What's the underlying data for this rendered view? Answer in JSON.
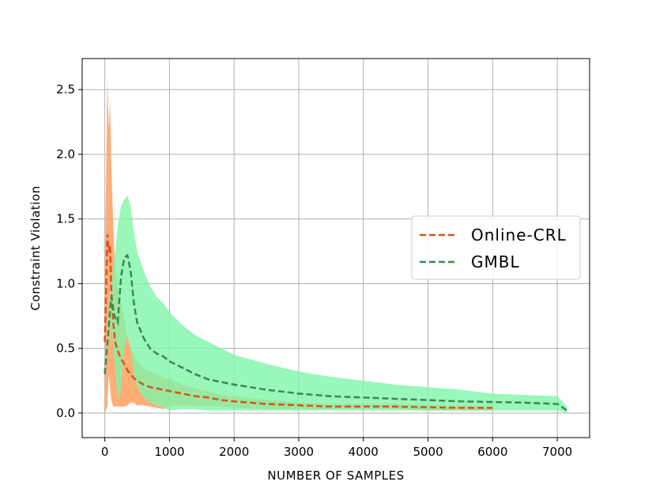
{
  "chart_data": {
    "type": "line",
    "xlabel": "NUMBER OF SAMPLES",
    "ylabel": "Constraint Violation",
    "xlim": [
      -350,
      7500
    ],
    "ylim": [
      -0.19,
      2.74
    ],
    "xticks": [
      0,
      1000,
      2000,
      3000,
      4000,
      5000,
      6000,
      7000
    ],
    "yticks": [
      0.0,
      0.5,
      1.0,
      1.5,
      2.0,
      2.5
    ],
    "xtick_labels": [
      "0",
      "1000",
      "2000",
      "3000",
      "4000",
      "5000",
      "6000",
      "7000"
    ],
    "ytick_labels": [
      "0.0",
      "0.5",
      "1.0",
      "1.5",
      "2.0",
      "2.5"
    ],
    "grid": true,
    "legend_position": "center-right",
    "series": [
      {
        "name": "Online-CRL",
        "line_color": "#d9531e",
        "band_color": "#ff9955",
        "line_style": "dashed",
        "x": [
          0,
          40,
          60,
          80,
          100,
          130,
          160,
          200,
          250,
          300,
          350,
          400,
          450,
          500,
          600,
          700,
          800,
          900,
          1000,
          1200,
          1400,
          1600,
          1800,
          2000,
          2500,
          3000,
          3500,
          4000,
          4500,
          5000,
          5500,
          6000
        ],
        "mean": [
          0.55,
          1.38,
          1.25,
          1.3,
          0.95,
          0.7,
          0.55,
          0.48,
          0.42,
          0.38,
          0.33,
          0.3,
          0.27,
          0.25,
          0.22,
          0.2,
          0.19,
          0.18,
          0.17,
          0.15,
          0.13,
          0.12,
          0.1,
          0.09,
          0.07,
          0.06,
          0.05,
          0.05,
          0.05,
          0.045,
          0.04,
          0.04
        ],
        "upper": [
          1.1,
          2.6,
          2.2,
          2.4,
          1.9,
          1.45,
          1.1,
          0.95,
          0.85,
          0.72,
          0.6,
          0.5,
          0.45,
          0.4,
          0.35,
          0.32,
          0.3,
          0.28,
          0.26,
          0.22,
          0.19,
          0.17,
          0.14,
          0.13,
          0.1,
          0.08,
          0.07,
          0.07,
          0.07,
          0.06,
          0.06,
          0.05
        ],
        "lower": [
          0.0,
          0.05,
          0.3,
          0.2,
          0.1,
          0.05,
          0.05,
          0.05,
          0.05,
          0.05,
          0.06,
          0.08,
          0.08,
          0.06,
          0.06,
          0.05,
          0.04,
          0.03,
          0.05,
          0.06,
          0.05,
          0.05,
          0.05,
          0.04,
          0.03,
          0.03,
          0.03,
          0.03,
          0.03,
          0.02,
          0.02,
          0.02
        ]
      },
      {
        "name": "GMBL",
        "line_color": "#3a8a4e",
        "band_color": "#80f5a8",
        "line_style": "dashed",
        "x": [
          0,
          50,
          100,
          150,
          200,
          250,
          300,
          350,
          400,
          450,
          500,
          600,
          700,
          800,
          900,
          1000,
          1200,
          1400,
          1600,
          1800,
          2000,
          2500,
          3000,
          3500,
          4000,
          4500,
          5000,
          5500,
          6000,
          6500,
          7000,
          7150
        ],
        "mean": [
          0.3,
          0.6,
          0.9,
          0.75,
          0.7,
          1.05,
          1.2,
          1.22,
          1.1,
          0.85,
          0.7,
          0.58,
          0.5,
          0.46,
          0.44,
          0.4,
          0.35,
          0.3,
          0.26,
          0.24,
          0.22,
          0.18,
          0.15,
          0.13,
          0.12,
          0.11,
          0.1,
          0.09,
          0.085,
          0.08,
          0.07,
          0.02
        ],
        "upper": [
          0.3,
          0.7,
          1.0,
          1.2,
          1.45,
          1.6,
          1.65,
          1.68,
          1.6,
          1.4,
          1.25,
          1.1,
          0.98,
          0.9,
          0.85,
          0.78,
          0.68,
          0.6,
          0.55,
          0.5,
          0.45,
          0.38,
          0.32,
          0.28,
          0.25,
          0.22,
          0.2,
          0.18,
          0.15,
          0.14,
          0.13,
          0.05
        ],
        "lower": [
          0.3,
          0.5,
          0.7,
          0.4,
          0.1,
          0.2,
          0.5,
          0.6,
          0.5,
          0.3,
          0.2,
          0.12,
          0.08,
          0.06,
          0.04,
          0.02,
          0.03,
          0.03,
          0.02,
          0.02,
          0.02,
          0.02,
          0.02,
          0.02,
          0.02,
          0.02,
          0.02,
          0.02,
          0.02,
          0.02,
          0.02,
          0.0
        ]
      }
    ]
  }
}
